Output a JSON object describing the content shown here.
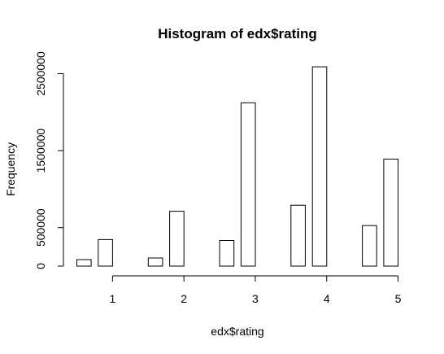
{
  "chart_data": {
    "type": "bar",
    "title": "Histogram of edx$rating",
    "xlabel": "edx$rating",
    "ylabel": "Frequency",
    "x_ticks": [
      1,
      2,
      3,
      4,
      5
    ],
    "x_tick_labels": [
      "1",
      "2",
      "3",
      "4",
      "5"
    ],
    "y_ticks": [
      0,
      500000,
      1500000,
      2500000
    ],
    "y_tick_labels": [
      "0",
      "500000",
      "1500000",
      "2500000"
    ],
    "xlim": [
      0.5,
      5
    ],
    "ylim": [
      0,
      2600000
    ],
    "bins": [
      {
        "x0": 0.5,
        "x1": 0.7,
        "value": 85000
      },
      {
        "x0": 0.8,
        "x1": 1.0,
        "value": 345000
      },
      {
        "x0": 1.0,
        "x1": 1.25,
        "value": 0
      },
      {
        "x0": 1.25,
        "x1": 1.5,
        "value": 0
      },
      {
        "x0": 1.5,
        "x1": 1.7,
        "value": 106000
      },
      {
        "x0": 1.8,
        "x1": 2.0,
        "value": 712000
      },
      {
        "x0": 2.0,
        "x1": 2.25,
        "value": 0
      },
      {
        "x0": 2.25,
        "x1": 2.5,
        "value": 0
      },
      {
        "x0": 2.5,
        "x1": 2.7,
        "value": 333000
      },
      {
        "x0": 2.8,
        "x1": 3.0,
        "value": 2121000
      },
      {
        "x0": 3.0,
        "x1": 3.25,
        "value": 0
      },
      {
        "x0": 3.25,
        "x1": 3.5,
        "value": 0
      },
      {
        "x0": 3.5,
        "x1": 3.7,
        "value": 791000
      },
      {
        "x0": 3.8,
        "x1": 4.0,
        "value": 2588000
      },
      {
        "x0": 4.0,
        "x1": 4.25,
        "value": 0
      },
      {
        "x0": 4.25,
        "x1": 4.5,
        "value": 0
      },
      {
        "x0": 4.5,
        "x1": 4.7,
        "value": 526000
      },
      {
        "x0": 4.8,
        "x1": 5.0,
        "value": 1390000
      }
    ],
    "grid": false,
    "legend": "none"
  }
}
